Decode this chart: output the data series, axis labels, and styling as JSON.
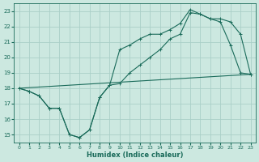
{
  "xlabel": "Humidex (Indice chaleur)",
  "xlim": [
    -0.5,
    23.5
  ],
  "ylim": [
    14.5,
    23.5
  ],
  "yticks": [
    15,
    16,
    17,
    18,
    19,
    20,
    21,
    22,
    23
  ],
  "xticks": [
    0,
    1,
    2,
    3,
    4,
    5,
    6,
    7,
    8,
    9,
    10,
    11,
    12,
    13,
    14,
    15,
    16,
    17,
    18,
    19,
    20,
    21,
    22,
    23
  ],
  "bg_color": "#cce8e0",
  "grid_color": "#aacfc8",
  "line_color": "#1a6b5a",
  "line1_x": [
    0,
    1,
    2,
    3,
    4,
    5,
    6,
    7,
    8,
    9,
    10,
    11,
    12,
    13,
    14,
    15,
    16,
    17,
    18,
    19,
    20,
    21,
    22,
    23
  ],
  "line1_y": [
    18.0,
    17.8,
    17.5,
    16.7,
    16.7,
    15.0,
    14.8,
    15.3,
    17.4,
    18.2,
    18.3,
    19.0,
    19.5,
    20.0,
    20.5,
    21.2,
    21.5,
    22.9,
    22.8,
    22.5,
    22.3,
    20.8,
    19.0,
    18.9
  ],
  "line2_x": [
    0,
    1,
    2,
    3,
    4,
    5,
    6,
    7,
    8,
    9,
    10,
    11,
    12,
    13,
    14,
    15,
    16,
    17,
    18,
    19,
    20,
    21,
    22,
    23
  ],
  "line2_y": [
    18.0,
    17.8,
    17.5,
    16.7,
    16.7,
    15.0,
    14.8,
    15.3,
    17.4,
    18.2,
    20.5,
    20.8,
    21.2,
    21.5,
    21.5,
    21.8,
    22.2,
    23.1,
    22.8,
    22.5,
    22.5,
    22.3,
    21.5,
    18.9
  ],
  "line3_x": [
    0,
    23
  ],
  "line3_y": [
    18.0,
    18.9
  ]
}
